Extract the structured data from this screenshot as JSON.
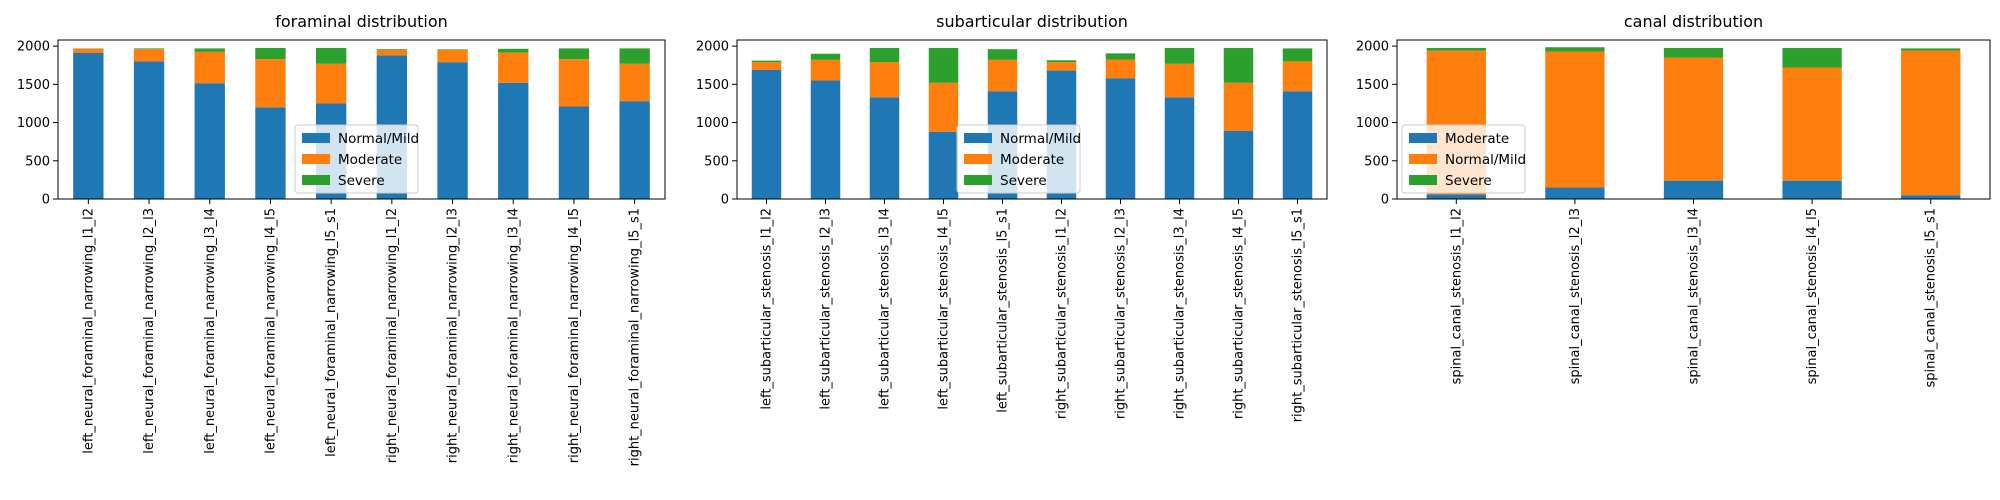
{
  "chart_data": [
    {
      "type": "bar",
      "stacked": true,
      "title": "foraminal distribution",
      "categories": [
        "left_neural_foraminal_narrowing_l1_l2",
        "left_neural_foraminal_narrowing_l2_l3",
        "left_neural_foraminal_narrowing_l3_l4",
        "left_neural_foraminal_narrowing_l4_l5",
        "left_neural_foraminal_narrowing_l5_s1",
        "right_neural_foraminal_narrowing_l1_l2",
        "right_neural_foraminal_narrowing_l2_l3",
        "right_neural_foraminal_narrowing_l3_l4",
        "right_neural_foraminal_narrowing_l4_l5",
        "right_neural_foraminal_narrowing_l5_s1"
      ],
      "series": [
        {
          "name": "Normal/Mild",
          "color": "#1f77b4",
          "values": [
            1910,
            1800,
            1515,
            1200,
            1250,
            1880,
            1790,
            1520,
            1210,
            1280
          ]
        },
        {
          "name": "Moderate",
          "color": "#ff7f0e",
          "values": [
            55,
            160,
            410,
            630,
            520,
            70,
            160,
            395,
            620,
            490
          ]
        },
        {
          "name": "Severe",
          "color": "#2ca02c",
          "values": [
            5,
            10,
            45,
            145,
            205,
            10,
            8,
            50,
            140,
            200
          ]
        }
      ],
      "yticks": [
        0,
        500,
        1000,
        1500,
        2000
      ],
      "ylim": [
        0,
        2080
      ],
      "xlabel": "",
      "ylabel": "",
      "grid": false,
      "legend_loc": "lower-center"
    },
    {
      "type": "bar",
      "stacked": true,
      "title": "subarticular distribution",
      "categories": [
        "left_subarticular_stenosis_l1_l2",
        "left_subarticular_stenosis_l2_l3",
        "left_subarticular_stenosis_l3_l4",
        "left_subarticular_stenosis_l4_l5",
        "left_subarticular_stenosis_l5_s1",
        "right_subarticular_stenosis_l1_l2",
        "right_subarticular_stenosis_l2_l3",
        "right_subarticular_stenosis_l3_l4",
        "right_subarticular_stenosis_l4_l5",
        "right_subarticular_stenosis_l5_s1"
      ],
      "series": [
        {
          "name": "Normal/Mild",
          "color": "#1f77b4",
          "values": [
            1690,
            1550,
            1330,
            880,
            1410,
            1680,
            1580,
            1330,
            890,
            1410
          ]
        },
        {
          "name": "Moderate",
          "color": "#ff7f0e",
          "values": [
            100,
            270,
            460,
            640,
            410,
            110,
            245,
            440,
            630,
            390
          ]
        },
        {
          "name": "Severe",
          "color": "#2ca02c",
          "values": [
            20,
            80,
            185,
            455,
            140,
            25,
            80,
            205,
            455,
            170
          ]
        }
      ],
      "yticks": [
        0,
        500,
        1000,
        1500,
        2000
      ],
      "ylim": [
        0,
        2080
      ],
      "xlabel": "",
      "ylabel": "",
      "grid": false,
      "legend_loc": "lower-center"
    },
    {
      "type": "bar",
      "stacked": true,
      "title": "canal distribution",
      "categories": [
        "spinal_canal_stenosis_l1_l2",
        "spinal_canal_stenosis_l2_l3",
        "spinal_canal_stenosis_l3_l4",
        "spinal_canal_stenosis_l4_l5",
        "spinal_canal_stenosis_l5_s1"
      ],
      "series": [
        {
          "name": "Moderate",
          "color": "#1f77b4",
          "values": [
            60,
            150,
            240,
            240,
            50
          ]
        },
        {
          "name": "Normal/Mild",
          "color": "#ff7f0e",
          "values": [
            1880,
            1780,
            1610,
            1480,
            1890
          ]
        },
        {
          "name": "Severe",
          "color": "#2ca02c",
          "values": [
            35,
            55,
            125,
            255,
            30
          ]
        }
      ],
      "yticks": [
        0,
        500,
        1000,
        1500,
        2000
      ],
      "ylim": [
        0,
        2080
      ],
      "xlabel": "",
      "ylabel": "",
      "grid": false,
      "legend_loc": "lower-left"
    }
  ]
}
